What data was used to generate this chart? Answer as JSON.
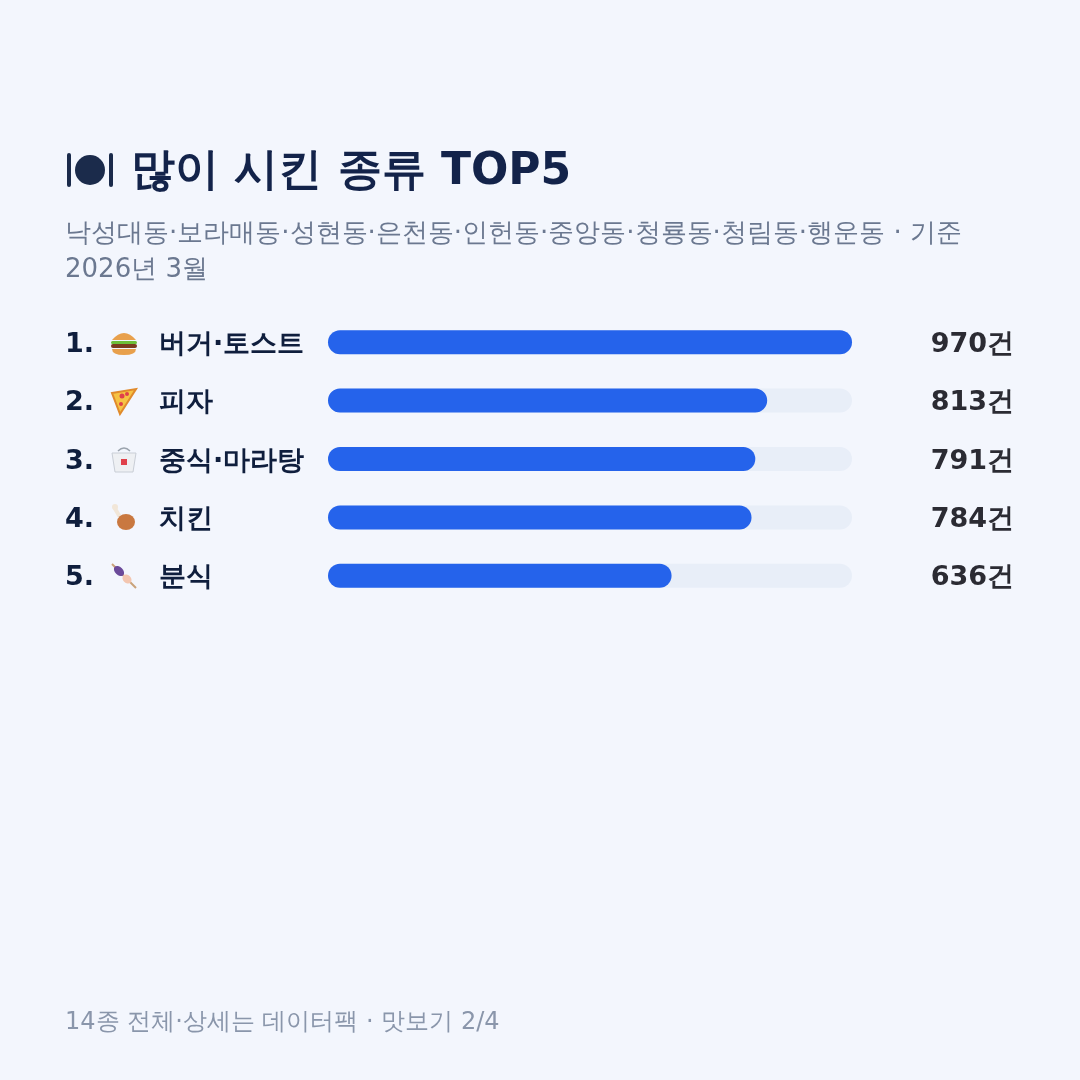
{
  "chart_data": {
    "type": "bar",
    "orientation": "horizontal",
    "title": "많이 시킨 종류 TOP5",
    "subtitle": "낙성대동·보라매동·성현동·은천동·인헌동·중앙동·청룡동·청림동·행운동 · 기준 2026년 3월",
    "categories": [
      "1. 버거·토스트",
      "2. 피자",
      "3. 중식·마라탕",
      "4. 치킨",
      "5. 분식"
    ],
    "values": [
      970,
      813,
      791,
      784,
      636
    ],
    "value_labels": [
      "970건",
      "813건",
      "791건",
      "784건",
      "636건"
    ],
    "color": "#2563eb",
    "annotations": [
      "14종 전체·상세는 데이터팩 · 맛보기 2/4"
    ],
    "grid": false
  }
}
